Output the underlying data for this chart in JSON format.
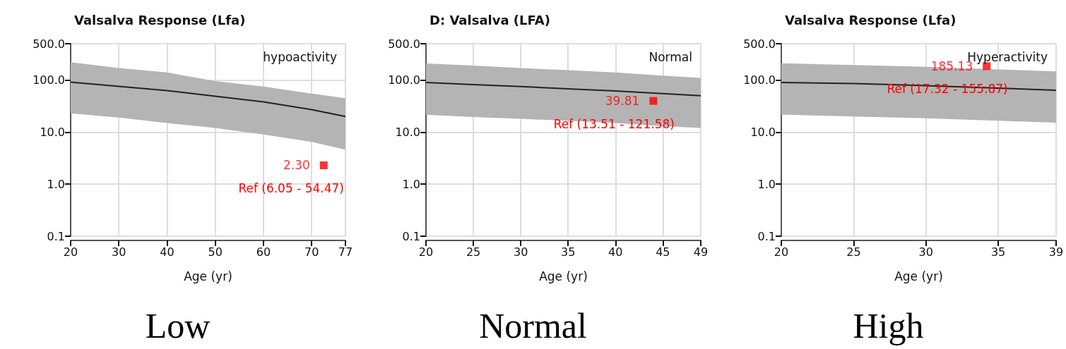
{
  "chart_data": [
    {
      "type": "line",
      "title": "Valsalva Response (Lfa)",
      "xlabel": "Age (yr)",
      "x": [
        20,
        30,
        40,
        50,
        60,
        70,
        77
      ],
      "xlim": [
        20,
        77
      ],
      "xticks": [
        20,
        30,
        40,
        50,
        60,
        70,
        77
      ],
      "ylim": [
        0.1,
        500
      ],
      "yticks": [
        {
          "value": 0.1,
          "label": "0.1"
        },
        {
          "value": 1,
          "label": "1.0"
        },
        {
          "value": 10,
          "label": "10.0"
        },
        {
          "value": 100,
          "label": "100.0"
        },
        {
          "value": 500,
          "label": "500.0"
        }
      ],
      "log": "y",
      "grid": true,
      "series": [
        {
          "type": "line",
          "color": "#222222",
          "values": [
            91,
            76,
            63,
            49,
            38,
            27,
            20
          ],
          "lower": [
            23,
            19,
            15,
            12,
            9,
            6.5,
            4.6
          ],
          "upper": [
            220,
            170,
            140,
            96,
            75,
            55,
            45
          ]
        },
        {
          "type": "scatter",
          "marker": "square",
          "color": "#ff0000",
          "x": [
            72.5
          ],
          "values": [
            2.3
          ],
          "value_labels": [
            "2.30"
          ]
        }
      ],
      "annotations": [
        "hypoactivity",
        "Ref (6.05 - 54.47)",
        "Low"
      ]
    },
    {
      "type": "line",
      "title": "D: Valsalva (LFA)",
      "xlabel": "Age (yr)",
      "x": [
        20,
        25,
        30,
        35,
        40,
        45,
        49
      ],
      "xlim": [
        20,
        49
      ],
      "xticks": [
        20,
        25,
        30,
        35,
        40,
        45,
        49
      ],
      "ylim": [
        0.1,
        500
      ],
      "yticks": [
        {
          "value": 0.1,
          "label": "0.1"
        },
        {
          "value": 1,
          "label": "1.0"
        },
        {
          "value": 10,
          "label": "10.0"
        },
        {
          "value": 100,
          "label": "100.0"
        },
        {
          "value": 500,
          "label": "500.0"
        }
      ],
      "log": "y",
      "grid": true,
      "series": [
        {
          "type": "line",
          "color": "#222222",
          "values": [
            90,
            82,
            75,
            68,
            62,
            55,
            50
          ],
          "lower": [
            21.5,
            19.5,
            18,
            16.5,
            15,
            13,
            12
          ],
          "upper": [
            209,
            190,
            170,
            155,
            140,
            122,
            110
          ]
        },
        {
          "type": "scatter",
          "marker": "square",
          "color": "#ff0000",
          "x": [
            44
          ],
          "values": [
            39.81
          ],
          "value_labels": [
            "39.81"
          ]
        }
      ],
      "annotations": [
        "Normal",
        "Ref (13.51 - 121.58)",
        "Normal"
      ]
    },
    {
      "type": "line",
      "title": "Valsalva Response (Lfa)",
      "xlabel": "Age (yr)",
      "x": [
        20,
        25,
        30,
        35,
        39
      ],
      "xlim": [
        20,
        39
      ],
      "xticks": [
        20,
        25,
        30,
        35,
        39
      ],
      "ylim": [
        0.1,
        500
      ],
      "yticks": [
        {
          "value": 0.1,
          "label": "0.1"
        },
        {
          "value": 1,
          "label": "1.0"
        },
        {
          "value": 10,
          "label": "10.0"
        },
        {
          "value": 100,
          "label": "100.0"
        },
        {
          "value": 500,
          "label": "500.0"
        }
      ],
      "log": "y",
      "grid": true,
      "series": [
        {
          "type": "line",
          "color": "#222222",
          "values": [
            90,
            86,
            78,
            70,
            64
          ],
          "lower": [
            21.7,
            20,
            18.5,
            16.5,
            15.2
          ],
          "upper": [
            211,
            195,
            180,
            160,
            147
          ]
        },
        {
          "type": "scatter",
          "marker": "square",
          "color": "#ff0000",
          "x": [
            34.2
          ],
          "values": [
            185.13
          ],
          "value_labels": [
            "185.13"
          ]
        }
      ],
      "annotations": [
        "Hyperactivity",
        "Ref (17.32 - 155.87)",
        "High"
      ]
    }
  ]
}
